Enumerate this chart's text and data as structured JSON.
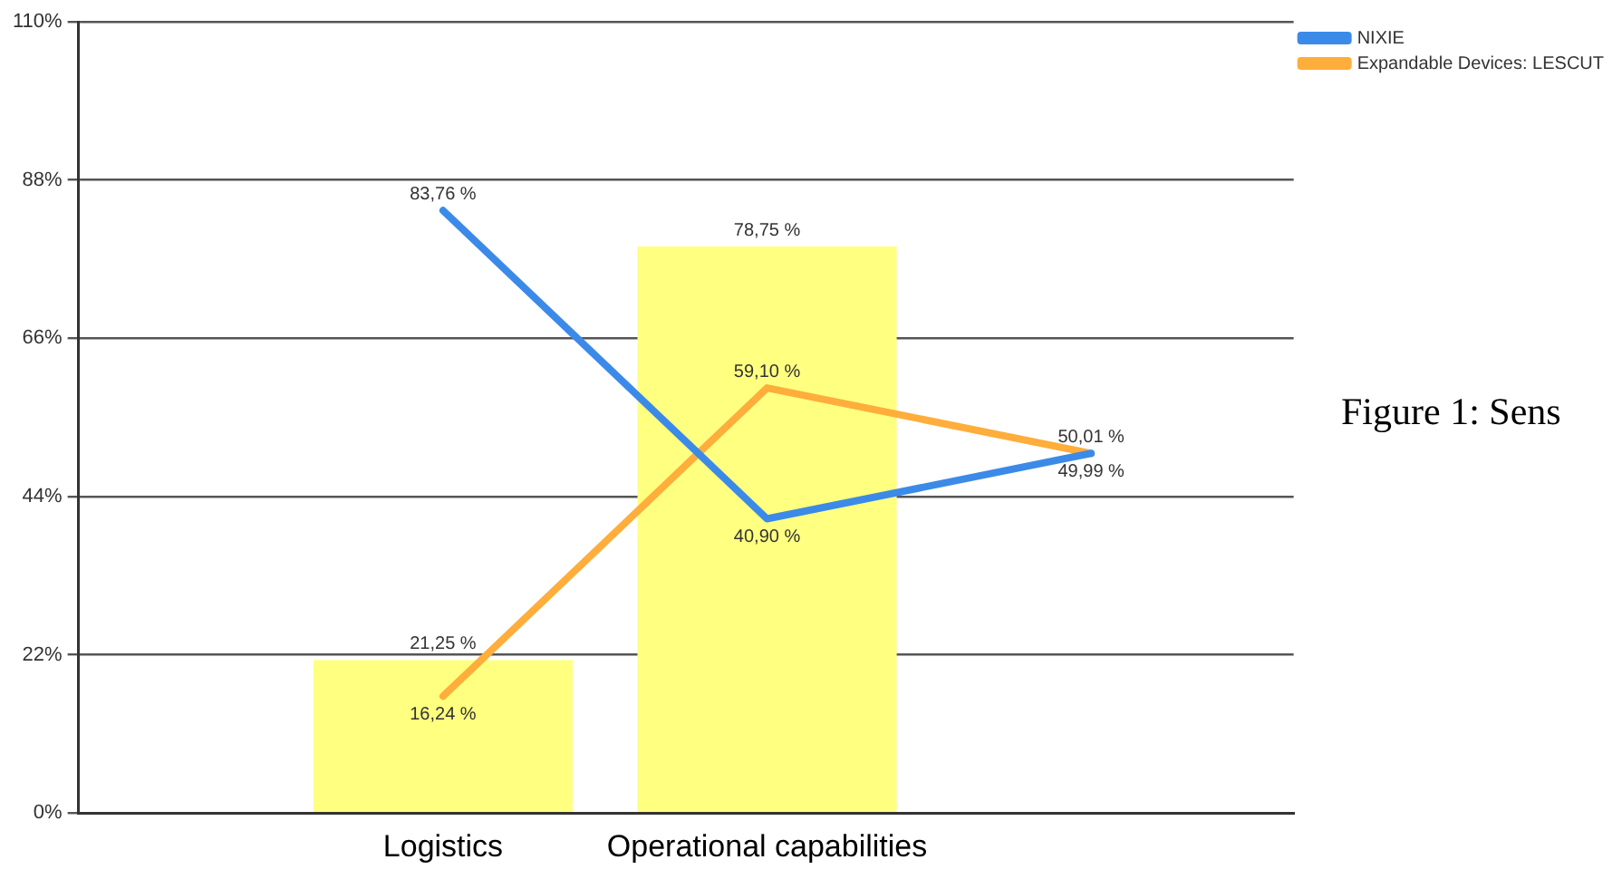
{
  "chart_data": {
    "type": "bar",
    "categories": [
      "Logistics",
      "Operational capabilities",
      null
    ],
    "series": [
      {
        "color": "#ffff80",
        "values": [
          21.25,
          78.75,
          null
        ],
        "value_labels": [
          "21,25 %",
          "78,75 %",
          null
        ]
      },
      {
        "type": "line",
        "name": "NIXIE",
        "color": "#3c8ae8",
        "values": [
          83.76,
          40.9,
          50.01
        ],
        "value_labels": [
          "83,76 %",
          "40,90 %",
          "50,01 %"
        ]
      },
      {
        "type": "line",
        "name": "Expandable Devices: LESCUT",
        "color": "#ffad3b",
        "values": [
          16.24,
          59.1,
          49.99
        ],
        "value_labels": [
          "16,24 %",
          "59,10 %",
          "49,99 %"
        ]
      }
    ],
    "ylim": [
      0,
      110
    ],
    "yticks": [
      {
        "value": 0,
        "label": "0%"
      },
      {
        "value": 22,
        "label": "22%"
      },
      {
        "value": 44,
        "label": "44%"
      },
      {
        "value": 66,
        "label": "66%"
      },
      {
        "value": 88,
        "label": "88%"
      },
      {
        "value": 110,
        "label": "110%"
      }
    ],
    "grid": "y",
    "legend": "top right",
    "marker": "none",
    "line_style": "solid",
    "annotations": [
      "Figure 1: Sens"
    ]
  }
}
